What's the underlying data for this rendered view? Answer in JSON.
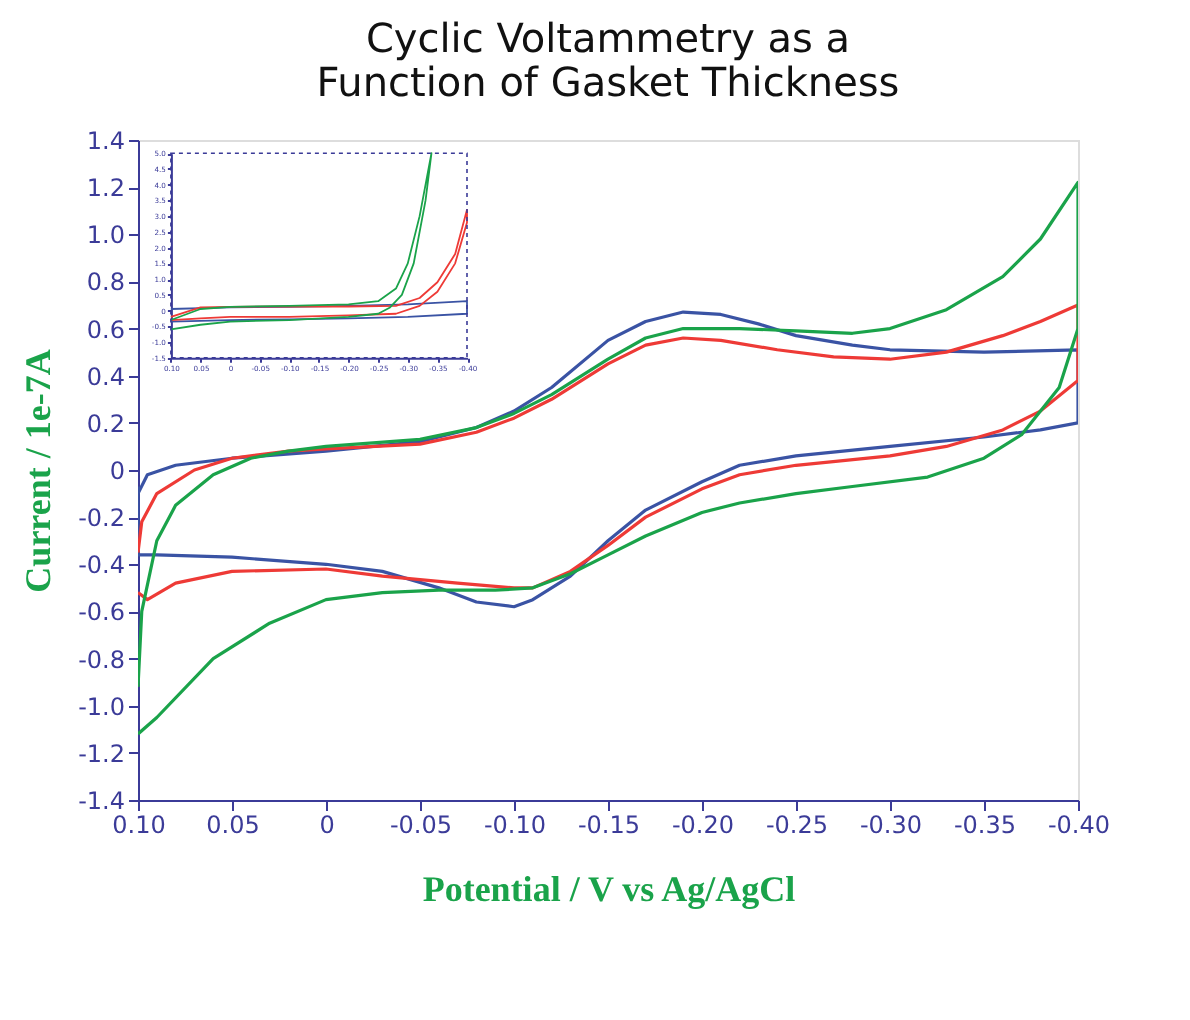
{
  "chart_data": [
    {
      "type": "line",
      "title": "Cyclic Voltammetry as a\nFunction of Gasket Thickness",
      "xlabel": "Potential / V vs Ag/AgCl",
      "ylabel": "Current / 1e-7A",
      "xlim": [
        0.1,
        -0.4
      ],
      "ylim": [
        -1.4,
        1.4
      ],
      "xticks": [
        {
          "value": 0.1,
          "label": "0.10"
        },
        {
          "value": 0.05,
          "label": "0.05"
        },
        0,
        {
          "value": -0.05,
          "label": "-0.05"
        },
        {
          "value": -0.1,
          "label": "-0.10"
        },
        {
          "value": -0.15,
          "label": "-0.15"
        },
        {
          "value": -0.2,
          "label": "-0.20"
        },
        {
          "value": -0.25,
          "label": "-0.25"
        },
        {
          "value": -0.3,
          "label": "-0.30"
        },
        {
          "value": -0.35,
          "label": "-0.35"
        },
        {
          "value": -0.4,
          "label": "-0.40"
        }
      ],
      "yticks": [
        1.4,
        1.2,
        {
          "value": 1.0,
          "label": "1.0"
        },
        0.8,
        0.6,
        0.4,
        0.2,
        0,
        -0.2,
        -0.4,
        -0.6,
        -0.8,
        {
          "value": -1.0,
          "label": "-1.0"
        },
        -1.2,
        -1.4
      ],
      "series": [
        {
          "color": "#3a53a4",
          "x": [
            0.1,
            0.095,
            0.08,
            0.05,
            0,
            -0.05,
            -0.08,
            -0.1,
            -0.12,
            -0.15,
            -0.17,
            -0.19,
            -0.21,
            -0.23,
            -0.25,
            -0.28,
            -0.3,
            -0.35,
            -0.4,
            -0.4,
            -0.38,
            -0.35,
            -0.3,
            -0.25,
            -0.22,
            -0.2,
            -0.17,
            -0.15,
            -0.13,
            -0.11,
            -0.1,
            -0.08,
            -0.06,
            -0.03,
            0,
            0.05,
            0.09,
            0.1,
            0.1
          ],
          "values": [
            -0.1,
            -0.02,
            0.02,
            0.05,
            0.08,
            0.12,
            0.18,
            0.25,
            0.35,
            0.55,
            0.63,
            0.67,
            0.66,
            0.62,
            0.57,
            0.53,
            0.51,
            0.5,
            0.51,
            0.2,
            0.17,
            0.14,
            0.1,
            0.06,
            0.02,
            -0.05,
            -0.17,
            -0.3,
            -0.45,
            -0.55,
            -0.58,
            -0.56,
            -0.5,
            -0.43,
            -0.4,
            -0.37,
            -0.36,
            -0.36,
            -0.07
          ]
        },
        {
          "color": "#ee3a36",
          "x": [
            0.1,
            0.098,
            0.09,
            0.07,
            0.05,
            0.02,
            0,
            -0.05,
            -0.08,
            -0.1,
            -0.12,
            -0.15,
            -0.17,
            -0.19,
            -0.21,
            -0.24,
            -0.27,
            -0.3,
            -0.33,
            -0.36,
            -0.38,
            -0.4,
            -0.4,
            -0.38,
            -0.36,
            -0.33,
            -0.3,
            -0.25,
            -0.22,
            -0.2,
            -0.17,
            -0.15,
            -0.13,
            -0.11,
            -0.1,
            -0.07,
            -0.03,
            0,
            0.05,
            0.08,
            0.095,
            0.1
          ],
          "values": [
            -0.35,
            -0.22,
            -0.1,
            0.0,
            0.05,
            0.08,
            0.09,
            0.11,
            0.16,
            0.22,
            0.3,
            0.45,
            0.53,
            0.56,
            0.55,
            0.51,
            0.48,
            0.47,
            0.5,
            0.57,
            0.63,
            0.7,
            0.38,
            0.25,
            0.17,
            0.1,
            0.06,
            0.02,
            -0.02,
            -0.08,
            -0.2,
            -0.32,
            -0.43,
            -0.5,
            -0.5,
            -0.48,
            -0.45,
            -0.42,
            -0.43,
            -0.48,
            -0.55,
            -0.52
          ]
        },
        {
          "color": "#1aa34a",
          "x": [
            0.1,
            0.098,
            0.09,
            0.08,
            0.06,
            0.04,
            0.02,
            0,
            -0.05,
            -0.08,
            -0.1,
            -0.12,
            -0.15,
            -0.17,
            -0.19,
            -0.22,
            -0.25,
            -0.28,
            -0.3,
            -0.33,
            -0.36,
            -0.38,
            -0.4,
            -0.4,
            -0.39,
            -0.37,
            -0.35,
            -0.32,
            -0.28,
            -0.25,
            -0.22,
            -0.2,
            -0.17,
            -0.15,
            -0.13,
            -0.11,
            -0.09,
            -0.06,
            -0.03,
            0,
            0.03,
            0.06,
            0.09,
            0.1
          ],
          "values": [
            -0.92,
            -0.6,
            -0.3,
            -0.15,
            -0.02,
            0.05,
            0.08,
            0.1,
            0.13,
            0.18,
            0.24,
            0.32,
            0.47,
            0.56,
            0.6,
            0.6,
            0.59,
            0.58,
            0.6,
            0.68,
            0.82,
            0.98,
            1.22,
            0.6,
            0.35,
            0.15,
            0.05,
            -0.03,
            -0.07,
            -0.1,
            -0.14,
            -0.18,
            -0.28,
            -0.36,
            -0.44,
            -0.5,
            -0.51,
            -0.51,
            -0.52,
            -0.55,
            -0.65,
            -0.8,
            -1.05,
            -1.12
          ]
        }
      ]
    },
    {
      "type": "line",
      "xlim": [
        0.1,
        -0.4
      ],
      "ylim": [
        -1.5,
        5.0
      ],
      "xticks": [
        {
          "value": 0.1,
          "label": "0.10"
        },
        {
          "value": 0.05,
          "label": "0.05"
        },
        0,
        {
          "value": -0.05,
          "label": "-0.05"
        },
        {
          "value": -0.1,
          "label": "-0.10"
        },
        {
          "value": -0.15,
          "label": "-0.15"
        },
        {
          "value": -0.2,
          "label": "-0.20"
        },
        {
          "value": -0.25,
          "label": "-0.25"
        },
        {
          "value": -0.3,
          "label": "-0.30"
        },
        {
          "value": -0.35,
          "label": "-0.35"
        },
        {
          "value": -0.4,
          "label": "-0.40"
        }
      ],
      "yticks": [
        {
          "value": 5.0,
          "label": "5.0"
        },
        4.5,
        {
          "value": 4.0,
          "label": "4.0"
        },
        3.5,
        {
          "value": 3.0,
          "label": "3.0"
        },
        2.5,
        {
          "value": 2.0,
          "label": "2.0"
        },
        1.5,
        {
          "value": 1.0,
          "label": "1.0"
        },
        0.5,
        0,
        -0.5,
        {
          "value": -1.0,
          "label": "-1.0"
        },
        -1.5
      ],
      "series": [
        {
          "color": "#3a53a4",
          "x": [
            0.1,
            0,
            -0.1,
            -0.2,
            -0.3,
            -0.4,
            -0.4,
            -0.3,
            -0.2,
            -0.1,
            0,
            0.1
          ],
          "values": [
            0.05,
            0.1,
            0.12,
            0.15,
            0.2,
            0.3,
            -0.1,
            -0.2,
            -0.25,
            -0.28,
            -0.3,
            -0.35
          ]
        },
        {
          "color": "#ee3a36",
          "x": [
            0.1,
            0.05,
            0,
            -0.1,
            -0.2,
            -0.28,
            -0.32,
            -0.35,
            -0.38,
            -0.4,
            -0.4,
            -0.38,
            -0.35,
            -0.32,
            -0.28,
            -0.2,
            -0.1,
            0,
            0.05,
            0.1
          ],
          "values": [
            -0.2,
            0.1,
            0.12,
            0.13,
            0.13,
            0.15,
            0.4,
            0.9,
            1.8,
            3.2,
            2.8,
            1.5,
            0.6,
            0.15,
            -0.1,
            -0.15,
            -0.2,
            -0.2,
            -0.25,
            -0.3
          ]
        },
        {
          "color": "#1aa34a",
          "x": [
            0.1,
            0.05,
            0,
            -0.1,
            -0.2,
            -0.25,
            -0.28,
            -0.3,
            -0.32,
            -0.34,
            -0.33,
            -0.31,
            -0.29,
            -0.27,
            -0.25,
            -0.2,
            -0.1,
            0,
            0.05,
            0.1
          ],
          "values": [
            -0.3,
            0.05,
            0.12,
            0.15,
            0.2,
            0.3,
            0.7,
            1.5,
            3.0,
            5.0,
            3.5,
            1.5,
            0.5,
            0.1,
            -0.1,
            -0.2,
            -0.3,
            -0.35,
            -0.45,
            -0.6
          ]
        }
      ]
    }
  ]
}
